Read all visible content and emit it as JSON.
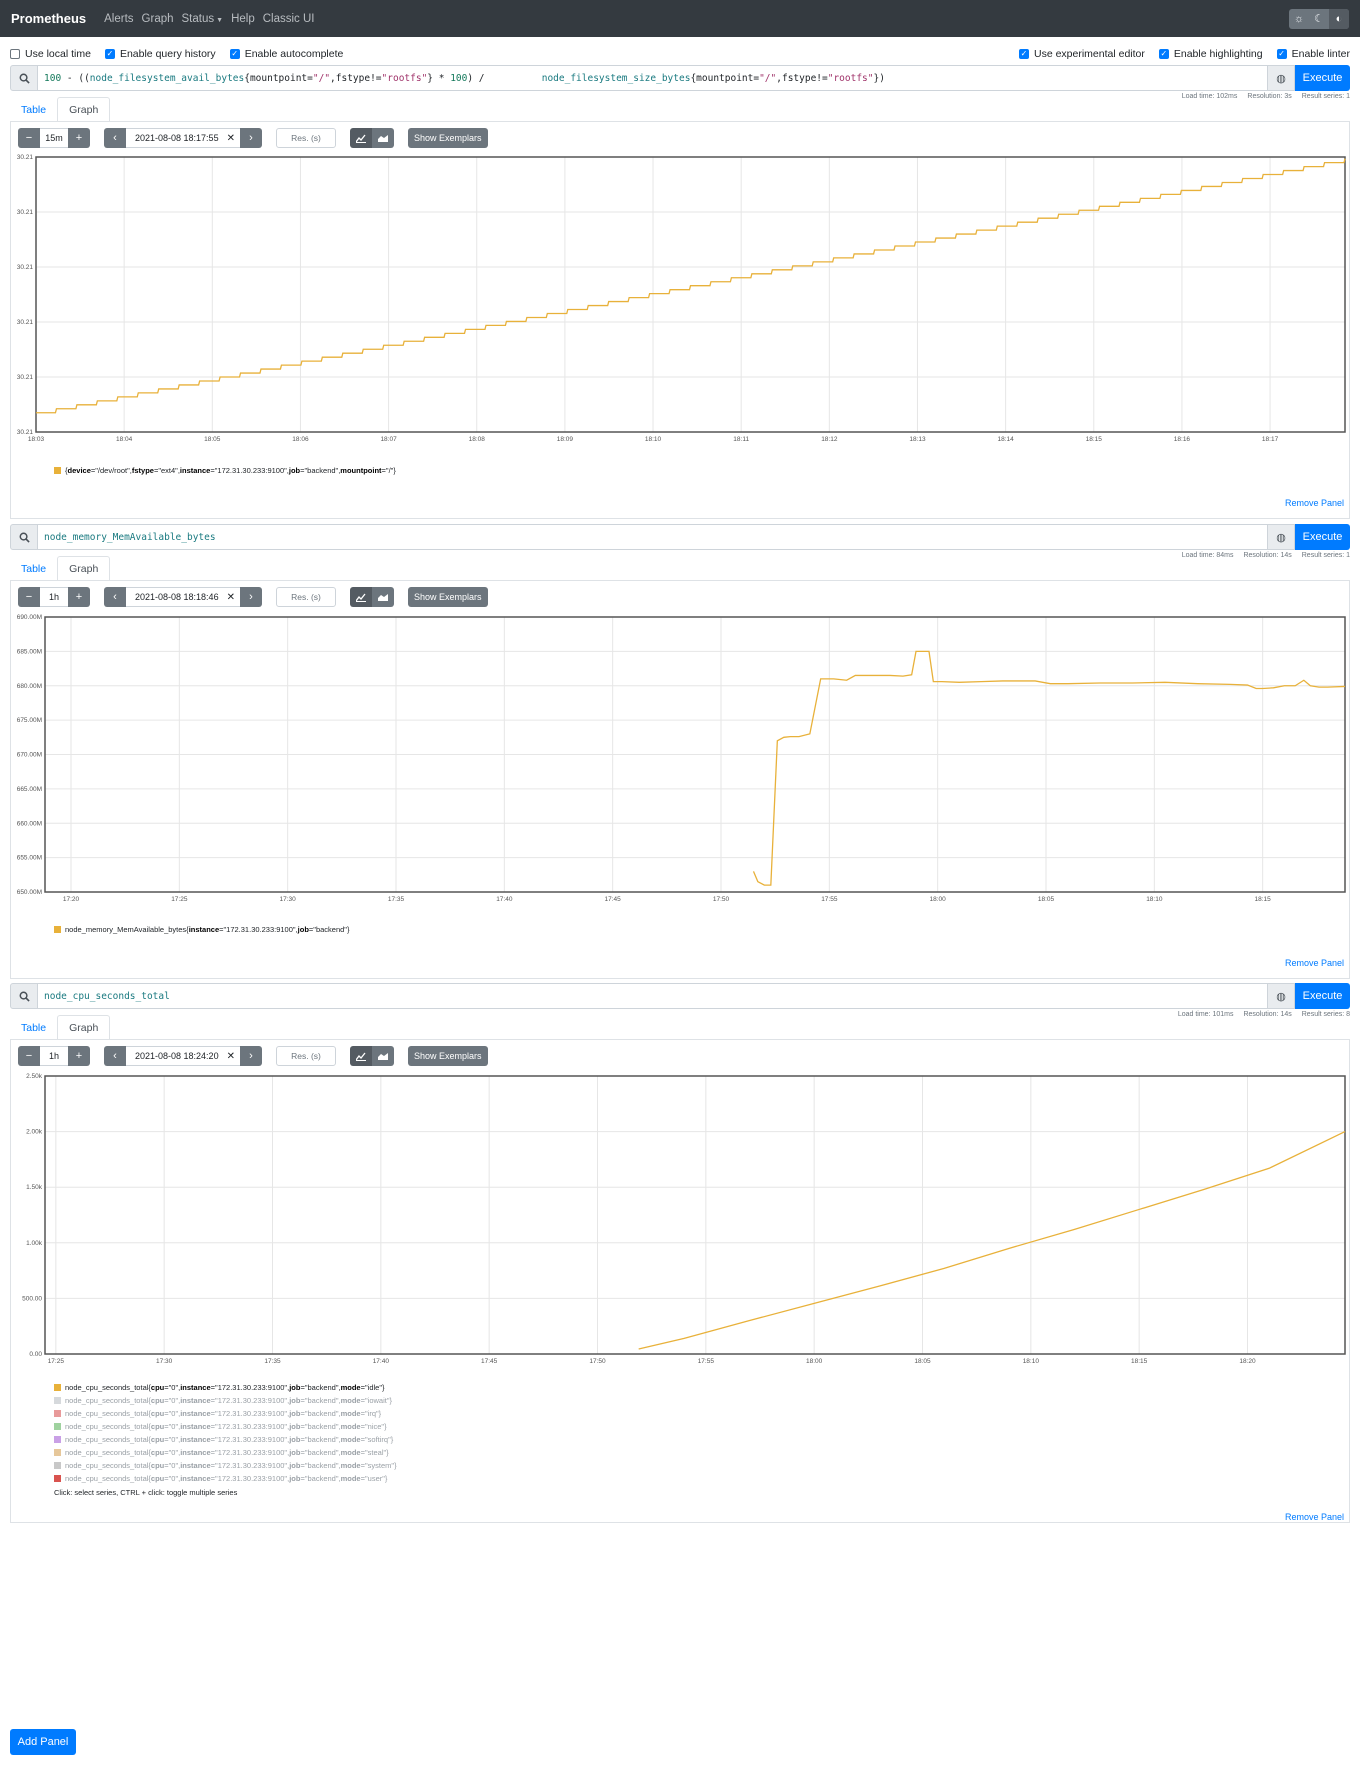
{
  "nav": {
    "brand": "Prometheus",
    "links": [
      "Alerts",
      "Graph",
      "Status",
      "Help",
      "Classic UI"
    ]
  },
  "options": {
    "local_time": "Use local time",
    "query_history": "Enable query history",
    "autocomplete": "Enable autocomplete",
    "experimental": "Use experimental editor",
    "highlighting": "Enable highlighting",
    "linter": "Enable linter"
  },
  "common": {
    "execute": "Execute",
    "tab_table": "Table",
    "tab_graph": "Graph",
    "res_placeholder": "Res. (s)",
    "show_exemplars": "Show Exemplars",
    "remove_panel": "Remove Panel",
    "add_panel": "Add Panel",
    "legend_hint": "Click: select series, CTRL + click: toggle multiple series",
    "line_color": "#e8b13a",
    "accent": "#007bff"
  },
  "panels": [
    {
      "query_tokens": [
        {
          "t": "100",
          "c": "q-num"
        },
        {
          "t": " - ",
          "c": ""
        },
        {
          "t": "((",
          "c": ""
        },
        {
          "t": "node_filesystem_avail_bytes",
          "c": "q-metric"
        },
        {
          "t": "{mountpoint=",
          "c": ""
        },
        {
          "t": "\"/\"",
          "c": "q-str"
        },
        {
          "t": ",fstype!=",
          "c": ""
        },
        {
          "t": "\"rootfs\"",
          "c": "q-str"
        },
        {
          "t": "} * ",
          "c": ""
        },
        {
          "t": "100",
          "c": "q-num"
        },
        {
          "t": ") /          ",
          "c": ""
        },
        {
          "t": "node_filesystem_size_bytes",
          "c": "q-metric"
        },
        {
          "t": "{mountpoint=",
          "c": ""
        },
        {
          "t": "\"/\"",
          "c": "q-str"
        },
        {
          "t": ",fstype!=",
          "c": ""
        },
        {
          "t": "\"rootfs\"",
          "c": "q-str"
        },
        {
          "t": "})",
          "c": ""
        }
      ],
      "load_time": "Load time: 102ms",
      "resolution": "Resolution: 3s",
      "result_series": "Result series: 1",
      "range": "15m",
      "end_time": "2021-08-08 18:17:55",
      "legend": [
        {
          "parts": [
            [
              "{",
              ""
            ],
            [
              "device",
              "b"
            ],
            [
              "=\"/dev/root\", ",
              ""
            ],
            [
              "fstype",
              "b"
            ],
            [
              "=\"ext4\", ",
              ""
            ],
            [
              "instance",
              "b"
            ],
            [
              "=\"172.31.30.233:9100\", ",
              ""
            ],
            [
              "job",
              "b"
            ],
            [
              "=\"backend\", ",
              ""
            ],
            [
              "mountpoint",
              "b"
            ],
            [
              "=\"/\"}",
              ""
            ]
          ],
          "color": "#e8b13a",
          "dim": false
        }
      ]
    },
    {
      "query_tokens": [
        {
          "t": "node_memory_MemAvailable_bytes",
          "c": "q-metric"
        }
      ],
      "load_time": "Load time: 84ms",
      "resolution": "Resolution: 14s",
      "result_series": "Result series: 1",
      "range": "1h",
      "end_time": "2021-08-08 18:18:46",
      "legend": [
        {
          "parts": [
            [
              "node_memory_MemAvailable_bytes{",
              ""
            ],
            [
              "instance",
              "b"
            ],
            [
              "=\"172.31.30.233:9100\", ",
              ""
            ],
            [
              "job",
              "b"
            ],
            [
              "=\"backend\"}",
              ""
            ]
          ],
          "color": "#e8b13a",
          "dim": false
        }
      ]
    },
    {
      "query_tokens": [
        {
          "t": "node_cpu_seconds_total",
          "c": "q-metric"
        }
      ],
      "load_time": "Load time: 101ms",
      "resolution": "Resolution: 14s",
      "result_series": "Result series: 8",
      "range": "1h",
      "end_time": "2021-08-08 18:24:20",
      "legend": [
        {
          "parts": [
            [
              "node_cpu_seconds_total{",
              ""
            ],
            [
              "cpu",
              "b"
            ],
            [
              "=\"0\", ",
              ""
            ],
            [
              "instance",
              "b"
            ],
            [
              "=\"172.31.30.233:9100\", ",
              ""
            ],
            [
              "job",
              "b"
            ],
            [
              "=\"backend\", ",
              ""
            ],
            [
              "mode",
              "b"
            ],
            [
              "=\"idle\"}",
              ""
            ]
          ],
          "color": "#e8b13a",
          "dim": false
        },
        {
          "parts": [
            [
              "node_cpu_seconds_total{",
              ""
            ],
            [
              "cpu",
              "b"
            ],
            [
              "=\"0\", ",
              ""
            ],
            [
              "instance",
              "b"
            ],
            [
              "=\"172.31.30.233:9100\", ",
              ""
            ],
            [
              "job",
              "b"
            ],
            [
              "=\"backend\", ",
              ""
            ],
            [
              "mode",
              "b"
            ],
            [
              "=\"iowait\"}",
              ""
            ]
          ],
          "color": "#d6d9dc",
          "dim": true
        },
        {
          "parts": [
            [
              "node_cpu_seconds_total{",
              ""
            ],
            [
              "cpu",
              "b"
            ],
            [
              "=\"0\", ",
              ""
            ],
            [
              "instance",
              "b"
            ],
            [
              "=\"172.31.30.233:9100\", ",
              ""
            ],
            [
              "job",
              "b"
            ],
            [
              "=\"backend\", ",
              ""
            ],
            [
              "mode",
              "b"
            ],
            [
              "=\"irq\"}",
              ""
            ]
          ],
          "color": "#e89a9a",
          "dim": true
        },
        {
          "parts": [
            [
              "node_cpu_seconds_total{",
              ""
            ],
            [
              "cpu",
              "b"
            ],
            [
              "=\"0\", ",
              ""
            ],
            [
              "instance",
              "b"
            ],
            [
              "=\"172.31.30.233:9100\", ",
              ""
            ],
            [
              "job",
              "b"
            ],
            [
              "=\"backend\", ",
              ""
            ],
            [
              "mode",
              "b"
            ],
            [
              "=\"nice\"}",
              ""
            ]
          ],
          "color": "#9fd29f",
          "dim": true
        },
        {
          "parts": [
            [
              "node_cpu_seconds_total{",
              ""
            ],
            [
              "cpu",
              "b"
            ],
            [
              "=\"0\", ",
              ""
            ],
            [
              "instance",
              "b"
            ],
            [
              "=\"172.31.30.233:9100\", ",
              ""
            ],
            [
              "job",
              "b"
            ],
            [
              "=\"backend\", ",
              ""
            ],
            [
              "mode",
              "b"
            ],
            [
              "=\"softirq\"}",
              ""
            ]
          ],
          "color": "#c9a0e6",
          "dim": true
        },
        {
          "parts": [
            [
              "node_cpu_seconds_total{",
              ""
            ],
            [
              "cpu",
              "b"
            ],
            [
              "=\"0\", ",
              ""
            ],
            [
              "instance",
              "b"
            ],
            [
              "=\"172.31.30.233:9100\", ",
              ""
            ],
            [
              "job",
              "b"
            ],
            [
              "=\"backend\", ",
              ""
            ],
            [
              "mode",
              "b"
            ],
            [
              "=\"steal\"}",
              ""
            ]
          ],
          "color": "#e6c79a",
          "dim": true
        },
        {
          "parts": [
            [
              "node_cpu_seconds_total{",
              ""
            ],
            [
              "cpu",
              "b"
            ],
            [
              "=\"0\", ",
              ""
            ],
            [
              "instance",
              "b"
            ],
            [
              "=\"172.31.30.233:9100\", ",
              ""
            ],
            [
              "job",
              "b"
            ],
            [
              "=\"backend\", ",
              ""
            ],
            [
              "mode",
              "b"
            ],
            [
              "=\"system\"}",
              ""
            ]
          ],
          "color": "#c8c8c8",
          "dim": true
        },
        {
          "parts": [
            [
              "node_cpu_seconds_total{",
              ""
            ],
            [
              "cpu",
              "b"
            ],
            [
              "=\"0\", ",
              ""
            ],
            [
              "instance",
              "b"
            ],
            [
              "=\"172.31.30.233:9100\", ",
              ""
            ],
            [
              "job",
              "b"
            ],
            [
              "=\"backend\", ",
              ""
            ],
            [
              "mode",
              "b"
            ],
            [
              "=\"user\"}",
              ""
            ]
          ],
          "color": "#d9534f",
          "dim": true
        }
      ]
    }
  ],
  "chart_data": [
    {
      "type": "line",
      "title": "",
      "x_ticks": [
        "18:03",
        "18:04",
        "18:05",
        "18:06",
        "18:07",
        "18:08",
        "18:09",
        "18:10",
        "18:11",
        "18:12",
        "18:13",
        "18:14",
        "18:15",
        "18:16",
        "18:17"
      ],
      "x_range_min": [
        0,
        14.85
      ],
      "y_ticks": [
        "30.21",
        "30.21",
        "30.21",
        "30.21",
        "30.21",
        "30.21"
      ],
      "ylim": [
        0,
        5
      ],
      "series": [
        {
          "name": "{device=\"/dev/root\", fstype=\"ext4\", instance=\"172.31.30.233:9100\", job=\"backend\", mountpoint=\"/\"}",
          "start": [
            0,
            0.35
          ],
          "end": [
            14.85,
            4.97
          ],
          "steps": 64
        }
      ]
    },
    {
      "type": "line",
      "title": "",
      "x_ticks": [
        "17:20",
        "17:25",
        "17:30",
        "17:35",
        "17:40",
        "17:45",
        "17:50",
        "17:55",
        "18:00",
        "18:05",
        "18:10",
        "18:15"
      ],
      "x_range_min": [
        -1.2,
        58.8
      ],
      "y_ticks": [
        "650.00M",
        "655.00M",
        "660.00M",
        "665.00M",
        "670.00M",
        "675.00M",
        "680.00M",
        "685.00M",
        "690.00M"
      ],
      "ylim": [
        650,
        690
      ],
      "series": [
        {
          "name": "node_memory_MemAvailable_bytes{instance=\"172.31.30.233:9100\", job=\"backend\"}",
          "x": [
            31.5,
            31.7,
            32.0,
            32.3,
            32.6,
            32.9,
            33.2,
            33.6,
            34.1,
            34.6,
            34.8,
            35.2,
            35.8,
            36.2,
            36.8,
            37.2,
            37.8,
            38.4,
            38.8,
            39.0,
            39.3,
            39.6,
            39.8,
            40.2,
            41.0,
            42.0,
            43.0,
            44.5,
            45.2,
            46.0,
            47.5,
            49.0,
            50.5,
            52.0,
            53.5,
            54.3,
            54.7,
            55.0,
            55.5,
            56.0,
            56.5,
            56.9,
            57.2,
            57.6,
            58.0,
            58.8
          ],
          "y": [
            653.0,
            651.5,
            651.0,
            651.0,
            672.0,
            672.5,
            672.6,
            672.6,
            673.0,
            681.0,
            681.0,
            681.0,
            680.8,
            681.5,
            681.5,
            681.5,
            681.5,
            681.4,
            681.6,
            685.0,
            685.0,
            685.0,
            680.6,
            680.6,
            680.5,
            680.6,
            680.7,
            680.7,
            680.3,
            680.3,
            680.4,
            680.4,
            680.5,
            680.3,
            680.2,
            680.1,
            679.6,
            679.6,
            679.7,
            680.0,
            680.0,
            680.8,
            680.0,
            679.8,
            679.8,
            679.9
          ]
        }
      ]
    },
    {
      "type": "line",
      "title": "",
      "x_ticks": [
        "17:25",
        "17:30",
        "17:35",
        "17:40",
        "17:45",
        "17:50",
        "17:55",
        "18:00",
        "18:05",
        "18:10",
        "18:15",
        "18:20"
      ],
      "x_range_min": [
        -0.5,
        59.5
      ],
      "y_ticks": [
        "0.00",
        "500.00",
        "1.00k",
        "1.50k",
        "2.00k",
        "2.50k"
      ],
      "ylim": [
        0,
        2500
      ],
      "series": [
        {
          "name": "node_cpu_seconds_total{cpu=\"0\", instance=\"172.31.30.233:9100\", job=\"backend\", mode=\"idle\"}",
          "x": [
            26.9,
            29.0,
            32.0,
            35.0,
            38.0,
            41.0,
            44.0,
            47.0,
            50.0,
            53.0,
            56.0,
            59.5
          ],
          "y": [
            45,
            140,
            300,
            455,
            610,
            770,
            950,
            1120,
            1300,
            1480,
            1670,
            2000
          ]
        }
      ]
    }
  ]
}
